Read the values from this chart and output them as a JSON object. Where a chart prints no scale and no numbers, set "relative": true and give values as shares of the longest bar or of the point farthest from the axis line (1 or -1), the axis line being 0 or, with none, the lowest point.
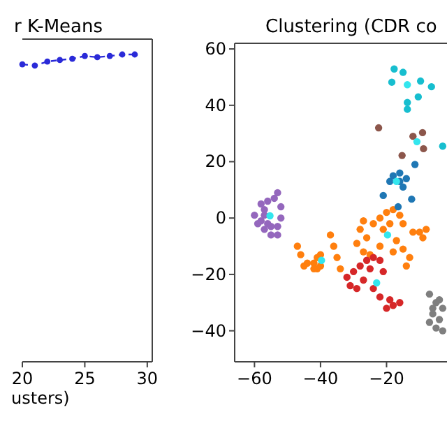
{
  "chart_data": [
    {
      "type": "line",
      "title": "r K-Means",
      "xlabel": "usters)",
      "relative": true,
      "tick_labels": "x",
      "xlim": [
        20,
        30.4
      ],
      "xticks": [
        20,
        25,
        30
      ],
      "marker": "circle",
      "line_style": "dashed",
      "series": [
        {
          "color": "#2a2ad8",
          "x": [
            20,
            21,
            22,
            23,
            24,
            25,
            26,
            27,
            28,
            29
          ],
          "values": [
            0.968,
            0.964,
            0.977,
            0.982,
            0.986,
            0.995,
            0.991,
            0.995,
            1,
            1
          ]
        }
      ]
    },
    {
      "type": "scatter",
      "title": "Clustering (CDR co",
      "xlim": [
        -66,
        0
      ],
      "ylim": [
        -51,
        62
      ],
      "xticks": [
        -60,
        -40,
        -20
      ],
      "yticks": [
        60,
        40,
        20,
        0,
        -20,
        -40
      ],
      "marker": "circle",
      "series": [
        {
          "color": "#9467bd",
          "x": [
            -58,
            -57,
            -56,
            -54,
            -53,
            -52,
            -52,
            -53,
            -55,
            -57,
            -59,
            -60,
            -58,
            -55,
            -53,
            -56,
            -57
          ],
          "values": [
            -1,
            3,
            6,
            7,
            9,
            4,
            0,
            -3,
            -6,
            -4,
            -2,
            1,
            5,
            -3,
            -6,
            -2,
            1
          ]
        },
        {
          "color": "#ff7f0e",
          "x": [
            -47,
            -46,
            -45,
            -36,
            -35,
            -34,
            -37,
            -42,
            -41,
            -40,
            -42,
            -44,
            -40,
            -41,
            -27,
            -28,
            -26,
            -29,
            -27,
            -24,
            -22,
            -20,
            -18,
            -16,
            -15,
            -17,
            -15,
            -13,
            -14,
            -18,
            -22,
            -25,
            -10,
            -8,
            -9,
            -21,
            -19,
            -12
          ],
          "values": [
            -10,
            -13,
            -17,
            -10,
            -14,
            -18,
            -6,
            -16,
            -14,
            -17,
            -18,
            -16,
            -13,
            -18,
            -1,
            -4,
            -7,
            -9,
            -12,
            -2,
            0,
            2,
            3,
            1,
            -2,
            -8,
            -11,
            -14,
            -17,
            -12,
            -10,
            -13,
            -5,
            -4,
            -7,
            -4,
            -2,
            -5
          ]
        },
        {
          "color": "#d62728",
          "x": [
            -32,
            -30,
            -31,
            -29,
            -28,
            -26,
            -25,
            -27,
            -24,
            -22,
            -21,
            -24,
            -22,
            -19,
            -18,
            -16,
            -20
          ],
          "values": [
            -21,
            -19,
            -24,
            -25,
            -17,
            -15,
            -18,
            -22,
            -14,
            -15,
            -19,
            -25,
            -28,
            -29,
            -31,
            -30,
            -32
          ]
        },
        {
          "color": "#7f7f7f",
          "x": [
            -7,
            -5,
            -3,
            -6,
            -4,
            -7,
            -5,
            -3,
            -6,
            -4
          ],
          "values": [
            -27,
            -30,
            -32,
            -34,
            -36,
            -37,
            -39,
            -40,
            -32,
            -29
          ]
        },
        {
          "color": "#1f77b4",
          "x": [
            -21,
            -12.4,
            -16.5,
            -11.4,
            -18,
            -16,
            -14,
            -15,
            -19,
            -16
          ],
          "values": [
            8,
            6.7,
            4,
            19,
            15,
            16,
            14,
            11,
            13,
            13
          ]
        },
        {
          "color": "#17becf",
          "x": [
            -17.7,
            -15,
            -18.4,
            -9.7,
            -6.4,
            -10.4,
            -13.7,
            -13.7,
            -3
          ],
          "values": [
            52.9,
            51.7,
            48.2,
            48.6,
            46.6,
            43,
            41,
            38.6,
            25.5
          ]
        },
        {
          "color": "#8c564b",
          "x": [
            -22.4,
            -9.1,
            -8.8,
            -15.3,
            -12
          ],
          "values": [
            32,
            30.3,
            24.6,
            22.2,
            29
          ]
        },
        {
          "color": "#33e6ee",
          "x": [
            -55.3,
            -39.7,
            -19.7,
            -23,
            -17,
            -13.7,
            -10.8
          ],
          "values": [
            0.8,
            -15,
            -6,
            -23,
            13,
            47.3,
            27.1
          ]
        }
      ]
    }
  ]
}
